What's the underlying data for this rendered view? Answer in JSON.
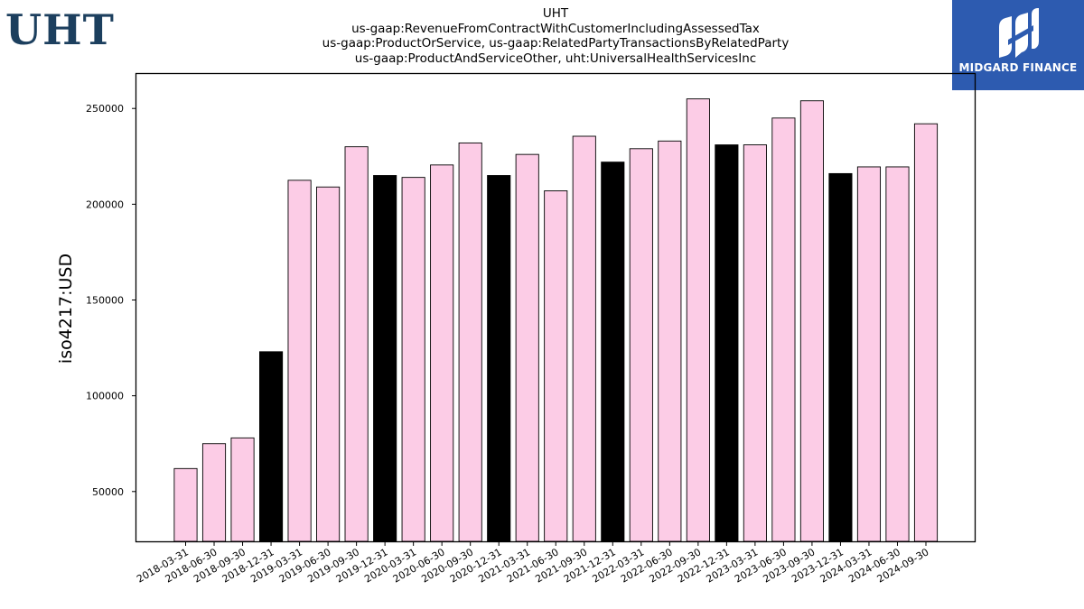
{
  "header": {
    "ticker_logo": "UHT",
    "title_lines": [
      "UHT",
      "us-gaap:RevenueFromContractWithCustomerIncludingAssessedTax",
      "us-gaap:ProductOrService, us-gaap:RelatedPartyTransactionsByRelatedParty",
      "us-gaap:ProductAndServiceOther, uht:UniversalHealthServicesInc"
    ]
  },
  "brand": {
    "name": "MIDGARD FINANCE",
    "background_color": "#2d5bb0",
    "icon": "midgard-logo-icon"
  },
  "chart_data": {
    "type": "bar",
    "title": "UHT",
    "xlabel": "",
    "ylabel": "iso4217:USD",
    "ylim": [
      24000,
      268000
    ],
    "yticks": [
      50000,
      100000,
      150000,
      200000,
      250000
    ],
    "ytick_labels": [
      "50000",
      "100000",
      "150000",
      "200000",
      "250000"
    ],
    "grid": false,
    "colors": {
      "quarter": "#fccce6",
      "year_end": "#000000",
      "edge": "#000000"
    },
    "categories": [
      "2018-03-31",
      "2018-06-30",
      "2018-09-30",
      "2018-12-31",
      "2019-03-31",
      "2019-06-30",
      "2019-09-30",
      "2019-12-31",
      "2020-03-31",
      "2020-06-30",
      "2020-09-30",
      "2020-12-31",
      "2021-03-31",
      "2021-06-30",
      "2021-09-30",
      "2021-12-31",
      "2022-03-31",
      "2022-06-30",
      "2022-09-30",
      "2022-12-31",
      "2023-03-31",
      "2023-06-30",
      "2023-09-30",
      "2023-12-31",
      "2024-03-31",
      "2024-06-30",
      "2024-09-30"
    ],
    "values": [
      62000,
      75000,
      78000,
      123000,
      212500,
      209000,
      230000,
      215000,
      214000,
      220500,
      232000,
      215000,
      226000,
      207000,
      235500,
      222000,
      229000,
      233000,
      255000,
      231000,
      231000,
      245000,
      254000,
      216000,
      219500,
      219500,
      242000
    ],
    "year_end": [
      false,
      false,
      false,
      true,
      false,
      false,
      false,
      true,
      false,
      false,
      false,
      true,
      false,
      false,
      false,
      true,
      false,
      false,
      false,
      true,
      false,
      false,
      false,
      true,
      false,
      false,
      false
    ]
  }
}
